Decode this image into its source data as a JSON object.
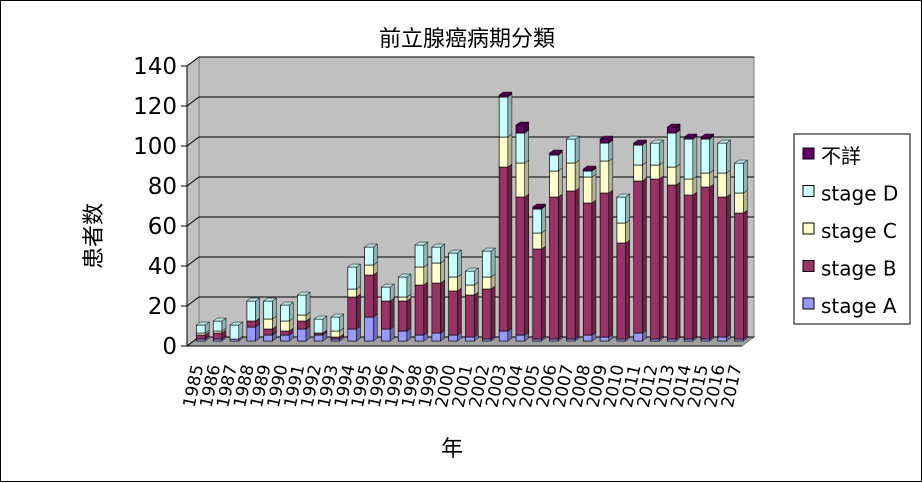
{
  "chart_data": {
    "type": "bar",
    "stacked": true,
    "title": "前立腺癌病期分類",
    "xlabel": "年",
    "ylabel": "患者数",
    "ylim": [
      0,
      140
    ],
    "yticks": [
      0,
      20,
      40,
      60,
      80,
      100,
      120,
      140
    ],
    "grid": true,
    "legend_position": "right",
    "categories": [
      "1985",
      "1986",
      "1987",
      "1988",
      "1989",
      "1990",
      "1991",
      "1992",
      "1993",
      "1994",
      "1995",
      "1996",
      "1997",
      "1998",
      "1999",
      "2000",
      "2001",
      "2002",
      "2003",
      "2004",
      "2005",
      "2006",
      "2007",
      "2008",
      "2009",
      "2010",
      "2011",
      "2012",
      "2013",
      "2014",
      "2015",
      "2016",
      "2017"
    ],
    "series": [
      {
        "name": "stage A",
        "color": "#9999ff",
        "values": [
          1,
          1,
          1,
          7,
          3,
          3,
          6,
          3,
          1,
          6,
          12,
          6,
          5,
          3,
          4,
          3,
          2,
          1,
          5,
          3,
          1,
          1,
          1,
          3,
          2,
          1,
          4,
          1,
          1,
          1,
          1,
          2,
          1
        ]
      },
      {
        "name": "stage B",
        "color": "#993366",
        "values": [
          2,
          3,
          0,
          3,
          3,
          2,
          4,
          1,
          1,
          16,
          21,
          14,
          15,
          25,
          25,
          22,
          21,
          25,
          82,
          69,
          45,
          71,
          74,
          66,
          72,
          48,
          76,
          80,
          77,
          72,
          76,
          70,
          63
        ]
      },
      {
        "name": "stage C",
        "color": "#ffffcc",
        "values": [
          1,
          1,
          0,
          0,
          5,
          5,
          3,
          0,
          3,
          4,
          5,
          0,
          2,
          9,
          10,
          7,
          5,
          6,
          15,
          17,
          8,
          13,
          14,
          13,
          16,
          10,
          8,
          7,
          9,
          8,
          7,
          12,
          10
        ]
      },
      {
        "name": "stage D",
        "color": "#ccffff",
        "values": [
          4,
          5,
          7,
          10,
          9,
          8,
          10,
          7,
          7,
          11,
          9,
          7,
          10,
          11,
          8,
          12,
          7,
          13,
          20,
          15,
          12,
          8,
          12,
          3,
          9,
          13,
          10,
          11,
          17,
          20,
          17,
          15,
          15
        ]
      },
      {
        "name": "不詳",
        "color": "#660066",
        "values": [
          0,
          0,
          0,
          0,
          0,
          0,
          0,
          0,
          0,
          0,
          0,
          0,
          0,
          0,
          0,
          0,
          0,
          0,
          1,
          4,
          1,
          1,
          0,
          1,
          2,
          0,
          1,
          0,
          3,
          1,
          1,
          0,
          0
        ]
      }
    ]
  }
}
